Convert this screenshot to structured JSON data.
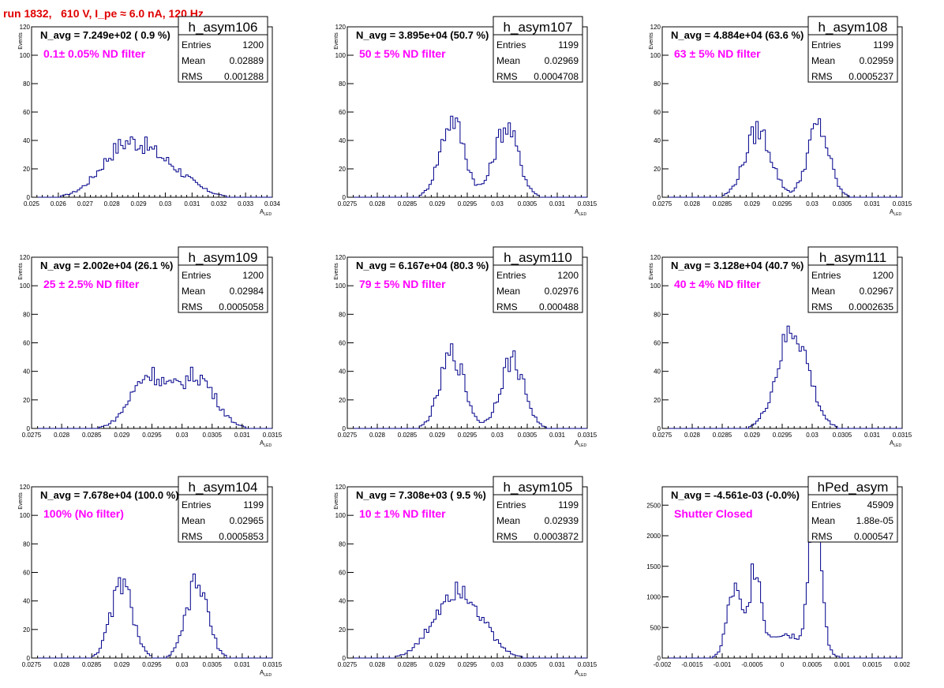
{
  "header": "run 1832,   610 V, I_pe ≈ 6.0 nA, 120 Hz",
  "colors": {
    "header": "#e00000",
    "histogram": "#00008b",
    "annotation": "#ff00ff",
    "frame": "#000000",
    "background": "#ffffff"
  },
  "chart_data": [
    {
      "type": "histogram",
      "stat_title": "h_asym106",
      "entries": "1200",
      "mean": "0.02889",
      "rms": "0.001288",
      "navg": "N_avg = 7.249e+02 ( 0.9 %)",
      "note": "0.1± 0.05% ND filter",
      "xlabel": "A",
      "xlabel_sub": "LED",
      "ylabel": "Events",
      "xlim": [
        0.025,
        0.034
      ],
      "ylim": [
        0,
        120
      ],
      "xticks": [
        0.025,
        0.026,
        0.027,
        0.028,
        0.029,
        0.03,
        0.031,
        0.032,
        0.033,
        0.034
      ],
      "xtick_labels": [
        "0.025",
        "0.026",
        "0.027",
        "0.028",
        "0.029",
        "0.03",
        "0.031",
        "0.032",
        "0.033",
        "0.034"
      ],
      "yticks": [
        0,
        20,
        40,
        60,
        80,
        100,
        120
      ],
      "ytick_labels": [
        "0",
        "20",
        "40",
        "60",
        "80",
        "100",
        "120"
      ],
      "peaks": [
        [
          0.0285,
          35,
          0.0009
        ],
        [
          0.0301,
          18,
          0.0009
        ]
      ]
    },
    {
      "type": "histogram",
      "stat_title": "h_asym107",
      "entries": "1199",
      "mean": "0.02969",
      "rms": "0.0004708",
      "navg": "N_avg = 3.895e+04 (50.7 %)",
      "note": "50 ± 5% ND filter",
      "xlabel": "A",
      "xlabel_sub": "LED",
      "ylabel": "Events",
      "xlim": [
        0.0275,
        0.0315
      ],
      "ylim": [
        0,
        120
      ],
      "xticks": [
        0.0275,
        0.028,
        0.0285,
        0.029,
        0.0295,
        0.03,
        0.0305,
        0.031,
        0.0315
      ],
      "xtick_labels": [
        "0.0275",
        "0.028",
        "0.0285",
        "0.029",
        "0.0295",
        "0.03",
        "0.0305",
        "0.031",
        "0.0315"
      ],
      "yticks": [
        0,
        20,
        40,
        60,
        80,
        100,
        120
      ],
      "ytick_labels": [
        "0",
        "20",
        "40",
        "60",
        "80",
        "100",
        "120"
      ],
      "peaks": [
        [
          0.02925,
          55,
          0.0002
        ],
        [
          0.03015,
          50,
          0.0002
        ]
      ]
    },
    {
      "type": "histogram",
      "stat_title": "h_asym108",
      "entries": "1199",
      "mean": "0.02959",
      "rms": "0.0005237",
      "navg": "N_avg = 4.884e+04 (63.6 %)",
      "note": "63 ± 5% ND filter",
      "xlabel": "A",
      "xlabel_sub": "LED",
      "ylabel": "Events",
      "xlim": [
        0.0275,
        0.0315
      ],
      "ylim": [
        0,
        120
      ],
      "xticks": [
        0.0275,
        0.028,
        0.0285,
        0.029,
        0.0295,
        0.03,
        0.0305,
        0.031,
        0.0315
      ],
      "xtick_labels": [
        "0.0275",
        "0.028",
        "0.0285",
        "0.029",
        "0.0295",
        "0.03",
        "0.0305",
        "0.031",
        "0.0315"
      ],
      "yticks": [
        0,
        20,
        40,
        60,
        80,
        100,
        120
      ],
      "ytick_labels": [
        "0",
        "20",
        "40",
        "60",
        "80",
        "100",
        "120"
      ],
      "peaks": [
        [
          0.0291,
          47,
          0.00022
        ],
        [
          0.0301,
          50,
          0.00018
        ]
      ]
    },
    {
      "type": "histogram",
      "stat_title": "h_asym109",
      "entries": "1200",
      "mean": "0.02984",
      "rms": "0.0005058",
      "navg": "N_avg = 2.002e+04 (26.1 %)",
      "note": "25 ± 2.5% ND filter",
      "xlabel": "A",
      "xlabel_sub": "LED",
      "ylabel": "Events",
      "xlim": [
        0.0275,
        0.0315
      ],
      "ylim": [
        0,
        120
      ],
      "xticks": [
        0.0275,
        0.028,
        0.0285,
        0.029,
        0.0295,
        0.03,
        0.0305,
        0.031,
        0.0315
      ],
      "xtick_labels": [
        "0.0275",
        "0.028",
        "0.0285",
        "0.029",
        "0.0295",
        "0.03",
        "0.0305",
        "0.031",
        "0.0315"
      ],
      "yticks": [
        0,
        20,
        40,
        60,
        80,
        100,
        120
      ],
      "ytick_labels": [
        "0",
        "20",
        "40",
        "60",
        "80",
        "100",
        "120"
      ],
      "peaks": [
        [
          0.02945,
          37,
          0.0003
        ],
        [
          0.03025,
          36,
          0.0003
        ]
      ]
    },
    {
      "type": "histogram",
      "stat_title": "h_asym110",
      "entries": "1200",
      "mean": "0.02976",
      "rms": "0.000488",
      "navg": "N_avg = 6.167e+04 (80.3 %)",
      "note": "79 ± 5% ND filter",
      "xlabel": "A",
      "xlabel_sub": "LED",
      "ylabel": "Events",
      "xlim": [
        0.0275,
        0.0315
      ],
      "ylim": [
        0,
        120
      ],
      "xticks": [
        0.0275,
        0.028,
        0.0285,
        0.029,
        0.0295,
        0.03,
        0.0305,
        0.031,
        0.0315
      ],
      "xtick_labels": [
        "0.0275",
        "0.028",
        "0.0285",
        "0.029",
        "0.0295",
        "0.03",
        "0.0305",
        "0.031",
        "0.0315"
      ],
      "yticks": [
        0,
        20,
        40,
        60,
        80,
        100,
        120
      ],
      "ytick_labels": [
        "0",
        "20",
        "40",
        "60",
        "80",
        "100",
        "120"
      ],
      "peaks": [
        [
          0.02925,
          52,
          0.0002
        ],
        [
          0.03025,
          48,
          0.0002
        ]
      ]
    },
    {
      "type": "histogram",
      "stat_title": "h_asym111",
      "entries": "1200",
      "mean": "0.02967",
      "rms": "0.0002635",
      "navg": "N_avg = 3.128e+04 (40.7 %)",
      "note": "40 ± 4% ND filter",
      "xlabel": "A",
      "xlabel_sub": "LED",
      "ylabel": "Events",
      "xlim": [
        0.0275,
        0.0315
      ],
      "ylim": [
        0,
        120
      ],
      "xticks": [
        0.0275,
        0.028,
        0.0285,
        0.029,
        0.0295,
        0.03,
        0.0305,
        0.031,
        0.0315
      ],
      "xtick_labels": [
        "0.0275",
        "0.028",
        "0.0285",
        "0.029",
        "0.0295",
        "0.03",
        "0.0305",
        "0.031",
        "0.0315"
      ],
      "yticks": [
        0,
        20,
        40,
        60,
        80,
        100,
        120
      ],
      "ytick_labels": [
        "0",
        "20",
        "40",
        "60",
        "80",
        "100",
        "120"
      ],
      "peaks": [
        [
          0.02968,
          68,
          0.00026
        ]
      ]
    },
    {
      "type": "histogram",
      "stat_title": "h_asym104",
      "entries": "1199",
      "mean": "0.02965",
      "rms": "0.0005853",
      "navg": "N_avg = 7.678e+04 (100.0 %)",
      "note": "100% (No filter)",
      "xlabel": "A",
      "xlabel_sub": "LED",
      "ylabel": "Events",
      "xlim": [
        0.0275,
        0.0315
      ],
      "ylim": [
        0,
        120
      ],
      "xticks": [
        0.0275,
        0.028,
        0.0285,
        0.029,
        0.0295,
        0.03,
        0.0305,
        0.031,
        0.0315
      ],
      "xtick_labels": [
        "0.0275",
        "0.028",
        "0.0285",
        "0.029",
        "0.0295",
        "0.03",
        "0.0305",
        "0.031",
        "0.0315"
      ],
      "yticks": [
        0,
        20,
        40,
        60,
        80,
        100,
        120
      ],
      "ytick_labels": [
        "0",
        "20",
        "40",
        "60",
        "80",
        "100",
        "120"
      ],
      "peaks": [
        [
          0.029,
          52,
          0.00018
        ],
        [
          0.03025,
          52,
          0.00018
        ]
      ]
    },
    {
      "type": "histogram",
      "stat_title": "h_asym105",
      "entries": "1199",
      "mean": "0.02939",
      "rms": "0.0003872",
      "navg": "N_avg = 7.308e+03 ( 9.5 %)",
      "note": "10 ± 1% ND filter",
      "xlabel": "A",
      "xlabel_sub": "LED",
      "ylabel": "Events",
      "xlim": [
        0.0275,
        0.0315
      ],
      "ylim": [
        0,
        120
      ],
      "xticks": [
        0.0275,
        0.028,
        0.0285,
        0.029,
        0.0295,
        0.03,
        0.0305,
        0.031,
        0.0315
      ],
      "xtick_labels": [
        "0.0275",
        "0.028",
        "0.0285",
        "0.029",
        "0.0295",
        "0.03",
        "0.0305",
        "0.031",
        "0.0315"
      ],
      "yticks": [
        0,
        20,
        40,
        60,
        80,
        100,
        120
      ],
      "ytick_labels": [
        "0",
        "20",
        "40",
        "60",
        "80",
        "100",
        "120"
      ],
      "peaks": [
        [
          0.02935,
          50,
          0.00038
        ]
      ]
    },
    {
      "type": "histogram",
      "stat_title": "hPed_asym",
      "entries": "45909",
      "mean": "1.88e-05",
      "rms": "0.000547",
      "navg": "N_avg = -4.561e-03 (-0.0%)",
      "note": "Shutter Closed",
      "xlabel": "",
      "xlabel_sub": "",
      "ylabel": "",
      "xlim": [
        -0.002,
        0.002
      ],
      "ylim": [
        0,
        2800
      ],
      "xticks": [
        -0.002,
        -0.0015,
        -0.001,
        -0.0005,
        0,
        0.0005,
        0.001,
        0.0015,
        0.002
      ],
      "xtick_labels": [
        "-0.002",
        "-0.0015",
        "-0.001",
        "-0.0005",
        "0",
        "0.0005",
        "0.001",
        "0.0015",
        "0.002"
      ],
      "yticks": [
        0,
        500,
        1000,
        1500,
        2000,
        2500
      ],
      "ytick_labels": [
        "0",
        "500",
        "1000",
        "1500",
        "2000",
        "2500"
      ],
      "peaks": [
        [
          -0.0008,
          1050,
          0.00012
        ],
        [
          -0.00045,
          1350,
          9e-05
        ],
        [
          0,
          400,
          0.0004
        ],
        [
          0.00055,
          2500,
          0.0001
        ]
      ]
    }
  ]
}
